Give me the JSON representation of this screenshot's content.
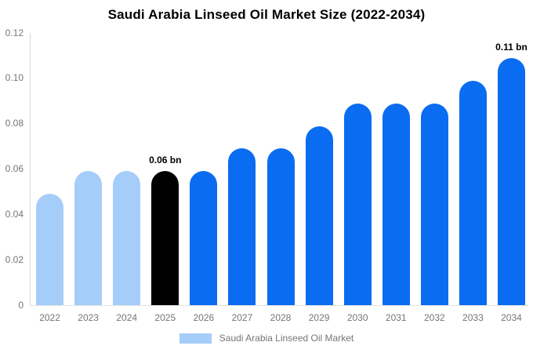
{
  "chart_data": {
    "type": "bar",
    "title": "Saudi Arabia Linseed Oil Market Size (2022-2034)",
    "categories": [
      "2022",
      "2023",
      "2024",
      "2025",
      "2026",
      "2027",
      "2028",
      "2029",
      "2030",
      "2031",
      "2032",
      "2033",
      "2034"
    ],
    "values": [
      0.049,
      0.059,
      0.059,
      0.059,
      0.059,
      0.069,
      0.069,
      0.079,
      0.089,
      0.089,
      0.089,
      0.099,
      0.109
    ],
    "bar_color_keys": [
      "light",
      "light",
      "light",
      "highlight",
      "blue",
      "blue",
      "blue",
      "blue",
      "blue",
      "blue",
      "blue",
      "blue",
      "blue"
    ],
    "annotations": [
      {
        "index": 3,
        "text": "0.06 bn"
      },
      {
        "index": 12,
        "text": "0.11 bn"
      }
    ],
    "palette": {
      "light": "#a5cdf9",
      "highlight": "#000000",
      "blue": "#0a6cf0"
    },
    "axis_color": "#d9d9d9",
    "tick_text_color": "#757575",
    "y_ticks": [
      {
        "label": "0.12",
        "value": 0.12
      },
      {
        "label": "0.10",
        "value": 0.1
      },
      {
        "label": "0.08",
        "value": 0.08
      },
      {
        "label": "0.06",
        "value": 0.06
      },
      {
        "label": "0.04",
        "value": 0.04
      },
      {
        "label": "0.02",
        "value": 0.02
      },
      {
        "label": "0",
        "value": 0
      }
    ],
    "ylim": [
      0,
      0.12
    ],
    "grid": false,
    "legend": {
      "position": "bottom",
      "label": "Saudi Arabia Linseed Oil Market",
      "swatch_color_key": "light"
    }
  }
}
